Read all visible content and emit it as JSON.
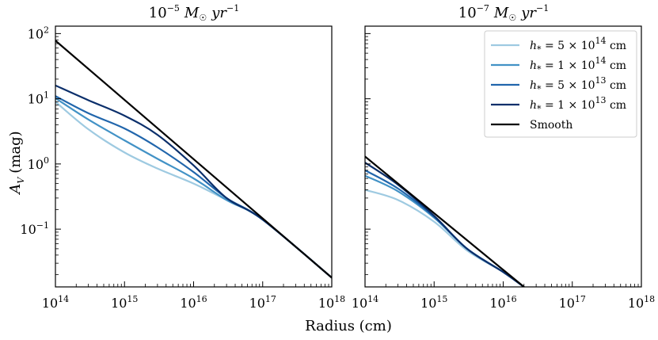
{
  "chart_data": [
    {
      "type": "line",
      "title": "10⁻⁵ M☉ yr⁻¹",
      "xlabel": "Radius (cm)",
      "ylabel": "A_V (mag)",
      "xscale": "log",
      "yscale": "log",
      "xlim": [
        100000000000000.0,
        1e+18
      ],
      "ylim": [
        0.013,
        130
      ],
      "x_ticks": [
        "10^14",
        "10^15",
        "10^16",
        "10^17",
        "10^18"
      ],
      "y_ticks": [
        "10^2",
        "10^1",
        "10^0",
        "10^-1"
      ],
      "series": [
        {
          "name": "h* = 5 × 10^14 cm",
          "color": "#9ecae1",
          "points": [
            [
              100000000000000.0,
              9.0
            ],
            [
              300000000000000.0,
              3.4
            ],
            [
              1000000000000000.0,
              1.5
            ],
            [
              3000000000000000.0,
              0.85
            ],
            [
              1e+16,
              0.5
            ],
            [
              3e+16,
              0.28
            ],
            [
              1e+17,
              0.14
            ],
            [
              1e+18,
              0.018
            ]
          ]
        },
        {
          "name": "h* = 1 × 10^14 cm",
          "color": "#4292c6",
          "points": [
            [
              100000000000000.0,
              10.2
            ],
            [
              300000000000000.0,
              4.8
            ],
            [
              1000000000000000.0,
              2.3
            ],
            [
              3000000000000000.0,
              1.2
            ],
            [
              1e+16,
              0.6
            ],
            [
              3e+16,
              0.28
            ],
            [
              1e+17,
              0.14
            ],
            [
              1e+18,
              0.018
            ]
          ]
        },
        {
          "name": "h* = 5 × 10^13 cm",
          "color": "#2166ac",
          "points": [
            [
              100000000000000.0,
              11.0
            ],
            [
              300000000000000.0,
              6.0
            ],
            [
              1000000000000000.0,
              3.5
            ],
            [
              3000000000000000.0,
              1.8
            ],
            [
              1e+16,
              0.75
            ],
            [
              3e+16,
              0.3
            ],
            [
              1e+17,
              0.14
            ],
            [
              1e+18,
              0.018
            ]
          ]
        },
        {
          "name": "h* = 1 × 10^13 cm",
          "color": "#0b2f6b",
          "points": [
            [
              100000000000000.0,
              16.0
            ],
            [
              300000000000000.0,
              9.5
            ],
            [
              1000000000000000.0,
              5.5
            ],
            [
              3000000000000000.0,
              2.8
            ],
            [
              1e+16,
              0.95
            ],
            [
              3e+16,
              0.3
            ],
            [
              1e+17,
              0.14
            ],
            [
              1e+18,
              0.018
            ]
          ]
        },
        {
          "name": "Smooth",
          "color": "#000000",
          "points": [
            [
              100000000000000.0,
              78.0
            ],
            [
              1e+18,
              0.018
            ]
          ]
        }
      ]
    },
    {
      "type": "line",
      "title": "10⁻⁷ M☉ yr⁻¹",
      "xlabel": "Radius (cm)",
      "xscale": "log",
      "yscale": "log",
      "xlim": [
        100000000000000.0,
        1e+18
      ],
      "ylim": [
        0.013,
        130
      ],
      "x_ticks": [
        "10^14",
        "10^15",
        "10^16",
        "10^17",
        "10^18"
      ],
      "legend": "top-right",
      "series": [
        {
          "name": "h* = 5 × 10^14 cm",
          "color": "#9ecae1",
          "points": [
            [
              100000000000000.0,
              0.4
            ],
            [
              300000000000000.0,
              0.28
            ],
            [
              1000000000000000.0,
              0.13
            ],
            [
              3000000000000000.0,
              0.047
            ],
            [
              1e+16,
              0.022
            ],
            [
              2e+16,
              0.013
            ]
          ]
        },
        {
          "name": "h* = 1 × 10^14 cm",
          "color": "#4292c6",
          "points": [
            [
              100000000000000.0,
              0.66
            ],
            [
              300000000000000.0,
              0.38
            ],
            [
              1000000000000000.0,
              0.15
            ],
            [
              3000000000000000.0,
              0.05
            ],
            [
              1e+16,
              0.022
            ],
            [
              2e+16,
              0.013
            ]
          ]
        },
        {
          "name": "h* = 5 × 10^13 cm",
          "color": "#2166ac",
          "points": [
            [
              100000000000000.0,
              0.8
            ],
            [
              300000000000000.0,
              0.42
            ],
            [
              1000000000000000.0,
              0.155
            ],
            [
              3000000000000000.0,
              0.05
            ],
            [
              1e+16,
              0.022
            ],
            [
              2e+16,
              0.013
            ]
          ]
        },
        {
          "name": "h* = 1 × 10^13 cm",
          "color": "#0b2f6b",
          "points": [
            [
              100000000000000.0,
              1.05
            ],
            [
              300000000000000.0,
              0.48
            ],
            [
              1000000000000000.0,
              0.16
            ],
            [
              3000000000000000.0,
              0.05
            ],
            [
              1e+16,
              0.022
            ],
            [
              2e+16,
              0.013
            ]
          ]
        },
        {
          "name": "Smooth",
          "color": "#000000",
          "points": [
            [
              100000000000000.0,
              1.3
            ],
            [
              2e+16,
              0.013
            ]
          ]
        }
      ]
    }
  ],
  "labels": {
    "left_title_base": "10",
    "left_title_exp": "−5",
    "right_title_base": "10",
    "right_title_exp": "−7",
    "title_unit": "M",
    "title_sun": "☉",
    "title_yr": "yr",
    "title_yr_exp": "−1",
    "xlabel": "Radius (cm)",
    "ylabel_main": "A",
    "ylabel_sub": "V",
    "ylabel_unit": "(mag)",
    "x_tick_base": "10",
    "x_tick_exps": [
      "14",
      "15",
      "16",
      "17",
      "18"
    ],
    "y_tick_exps": [
      "2",
      "1",
      "0",
      "−1"
    ],
    "legend": [
      {
        "label": "h* = 5 × 10^14 cm",
        "prefix": "h",
        "sub": "*",
        "mid": " = 5 × 10",
        "exp": "14",
        "unit": " cm"
      },
      {
        "label": "h* = 1 × 10^14 cm",
        "prefix": "h",
        "sub": "*",
        "mid": " = 1 × 10",
        "exp": "14",
        "unit": " cm"
      },
      {
        "label": "h* = 5 × 10^13 cm",
        "prefix": "h",
        "sub": "*",
        "mid": " = 5 × 10",
        "exp": "13",
        "unit": " cm"
      },
      {
        "label": "h* = 1 × 10^13 cm",
        "prefix": "h",
        "sub": "*",
        "mid": " = 1 × 10",
        "exp": "13",
        "unit": " cm"
      },
      {
        "label": "Smooth",
        "text": "Smooth"
      }
    ]
  }
}
